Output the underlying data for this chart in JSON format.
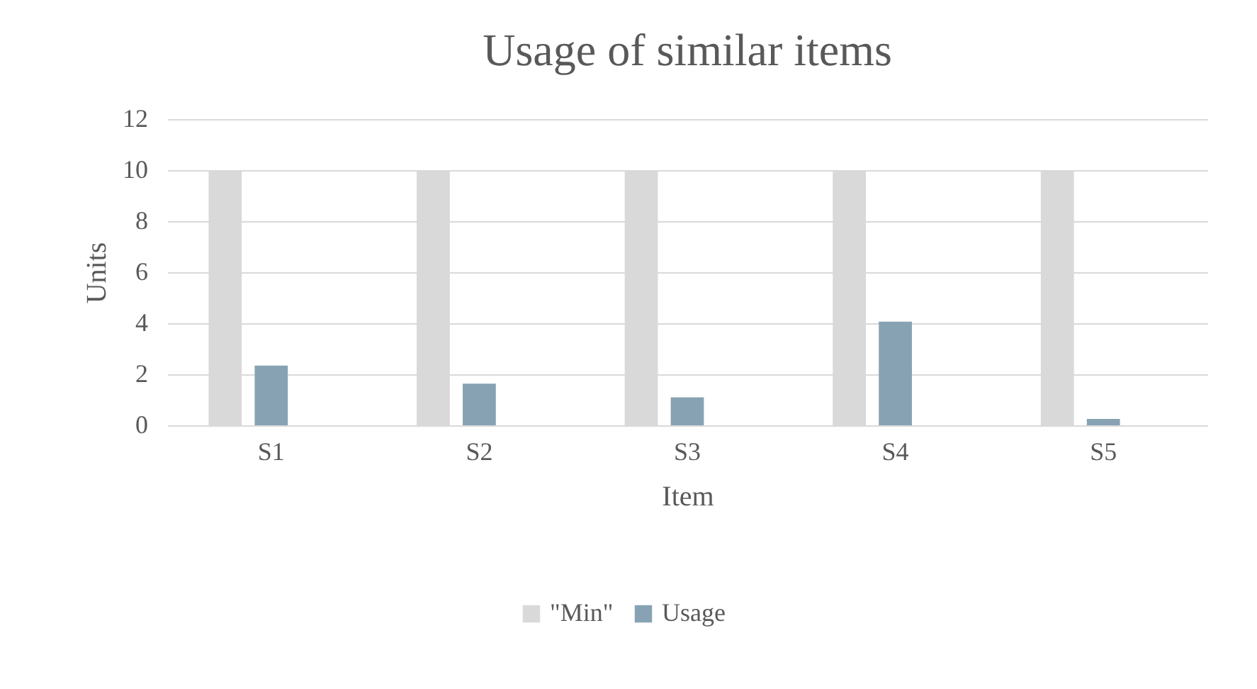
{
  "chart_data": {
    "type": "bar",
    "title": "Usage of similar items",
    "xlabel": "Item",
    "ylabel": "Units",
    "categories": [
      "S1",
      "S2",
      "S3",
      "S4",
      "S5"
    ],
    "series": [
      {
        "name": "\"Min\"",
        "color": "#d9d9d9",
        "values": [
          10,
          10,
          10,
          10,
          10
        ]
      },
      {
        "name": "Usage",
        "color": "#87a3b3",
        "values": [
          2.34,
          1.63,
          1.1,
          4.06,
          0.25
        ]
      }
    ],
    "ylim": [
      0,
      12
    ],
    "yticks": [
      0,
      2,
      4,
      6,
      8,
      10,
      12
    ],
    "grid": "y",
    "legend": "bottom"
  }
}
